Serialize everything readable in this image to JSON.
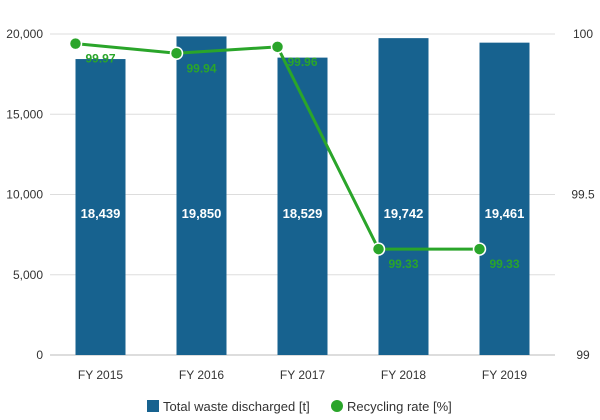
{
  "chart_data": {
    "type": "bar",
    "categories": [
      "FY 2015",
      "FY 2016",
      "FY 2017",
      "FY 2018",
      "FY 2019"
    ],
    "series": [
      {
        "name": "Total waste discharged [t]",
        "type": "bar",
        "axis": "left",
        "values": [
          18439,
          19850,
          18529,
          19742,
          19461
        ],
        "labels": [
          "18,439",
          "19,850",
          "18,529",
          "19,742",
          "19,461"
        ],
        "color": "#17628f"
      },
      {
        "name": "Recycling rate [%]",
        "type": "line",
        "axis": "right",
        "values": [
          99.97,
          99.94,
          99.96,
          99.33,
          99.33
        ],
        "labels": [
          "99.97",
          "99.94",
          "99.96",
          "99.33",
          "99.33"
        ],
        "color": "#2aa52a"
      }
    ],
    "y_left": {
      "ylim": [
        0,
        20000
      ],
      "ticks": [
        0,
        5000,
        10000,
        15000,
        20000
      ],
      "tick_labels": [
        "0",
        "5,000",
        "10,000",
        "15,000",
        "20,000"
      ]
    },
    "y_right": {
      "ylim": [
        99,
        100
      ],
      "ticks": [
        99,
        99.5,
        100
      ],
      "tick_labels": [
        "99",
        "99.5",
        "100"
      ]
    },
    "grid": "horizontal",
    "legend": "bottom",
    "title": "",
    "xlabel": "",
    "ylabel": ""
  }
}
